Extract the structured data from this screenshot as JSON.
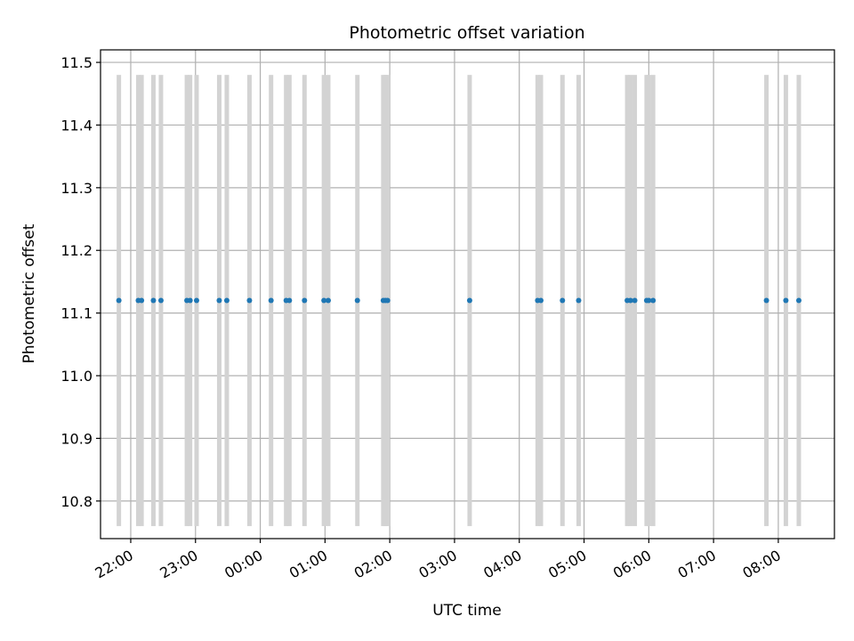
{
  "chart_data": {
    "type": "scatter",
    "title": "Photometric offset variation",
    "xlabel": "UTC time",
    "ylabel": "Photometric offset",
    "grid": true,
    "x_axis_kind": "time",
    "x_range": [
      "21:32",
      "08:52"
    ],
    "ylim": [
      10.74,
      11.52
    ],
    "y_ticks": [
      10.8,
      10.9,
      11.0,
      11.1,
      11.2,
      11.3,
      11.4,
      11.5
    ],
    "x_ticks": [
      "22:00",
      "23:00",
      "00:00",
      "01:00",
      "02:00",
      "03:00",
      "04:00",
      "05:00",
      "06:00",
      "07:00",
      "08:00"
    ],
    "colors": {
      "points": "#1f77b4",
      "bars": "#d3d3d3",
      "grid": "#b0b0b0"
    },
    "bar_range": [
      10.76,
      11.48
    ],
    "points": [
      {
        "time": "21:49",
        "value": 11.12
      },
      {
        "time": "22:07",
        "value": 11.12
      },
      {
        "time": "22:10",
        "value": 11.12
      },
      {
        "time": "22:21",
        "value": 11.12
      },
      {
        "time": "22:28",
        "value": 11.12
      },
      {
        "time": "22:52",
        "value": 11.12
      },
      {
        "time": "22:55",
        "value": 11.12
      },
      {
        "time": "23:01",
        "value": 11.12
      },
      {
        "time": "23:22",
        "value": 11.12
      },
      {
        "time": "23:29",
        "value": 11.12
      },
      {
        "time": "23:50",
        "value": 11.12
      },
      {
        "time": "00:10",
        "value": 11.12
      },
      {
        "time": "00:24",
        "value": 11.12
      },
      {
        "time": "00:27",
        "value": 11.12
      },
      {
        "time": "00:41",
        "value": 11.12
      },
      {
        "time": "00:59",
        "value": 11.12
      },
      {
        "time": "01:03",
        "value": 11.12
      },
      {
        "time": "01:30",
        "value": 11.12
      },
      {
        "time": "01:54",
        "value": 11.12
      },
      {
        "time": "01:56",
        "value": 11.12
      },
      {
        "time": "01:58",
        "value": 11.12
      },
      {
        "time": "03:14",
        "value": 11.12
      },
      {
        "time": "04:17",
        "value": 11.12
      },
      {
        "time": "04:20",
        "value": 11.12
      },
      {
        "time": "04:40",
        "value": 11.12
      },
      {
        "time": "04:55",
        "value": 11.12
      },
      {
        "time": "05:40",
        "value": 11.12
      },
      {
        "time": "05:43",
        "value": 11.12
      },
      {
        "time": "05:47",
        "value": 11.12
      },
      {
        "time": "05:58",
        "value": 11.12
      },
      {
        "time": "06:00",
        "value": 11.12
      },
      {
        "time": "06:04",
        "value": 11.12
      },
      {
        "time": "07:49",
        "value": 11.12
      },
      {
        "time": "08:07",
        "value": 11.12
      },
      {
        "time": "08:19",
        "value": 11.12
      }
    ]
  }
}
